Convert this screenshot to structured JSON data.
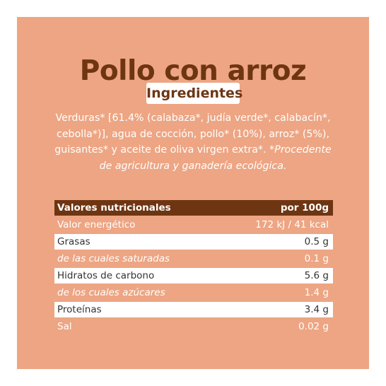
{
  "title": "Pollo con arroz",
  "badge": "Ingredientes",
  "ingredients": {
    "text": "Verduras* [61.4% (calabaza*, judía verde*, calabacín*, cebolla*)], agua de cocción, pollo* (10%), arroz* (5%), guisantes* y aceite de oliva virgen extra*.",
    "note": "*Procedente de agricultura y ganadería ecológica."
  },
  "table": {
    "header_label": "Valores nutricionales",
    "header_value": "por 100g",
    "rows": [
      {
        "label": "Valor energético",
        "value": "172 kJ / 41 kcal"
      },
      {
        "label": "Grasas",
        "value": "0.5 g"
      },
      {
        "label": "de las cuales saturadas",
        "value": "0.1 g"
      },
      {
        "label": "Hidratos de carbono",
        "value": "5.6 g"
      },
      {
        "label": "de los cuales azúcares",
        "value": "1.4 g"
      },
      {
        "label": "Proteínas",
        "value": "3.4 g"
      },
      {
        "label": "Sal",
        "value": "0.02 g"
      }
    ]
  },
  "colors": {
    "background": "#eda583",
    "accent_brown": "#6e3512",
    "white": "#ffffff"
  }
}
